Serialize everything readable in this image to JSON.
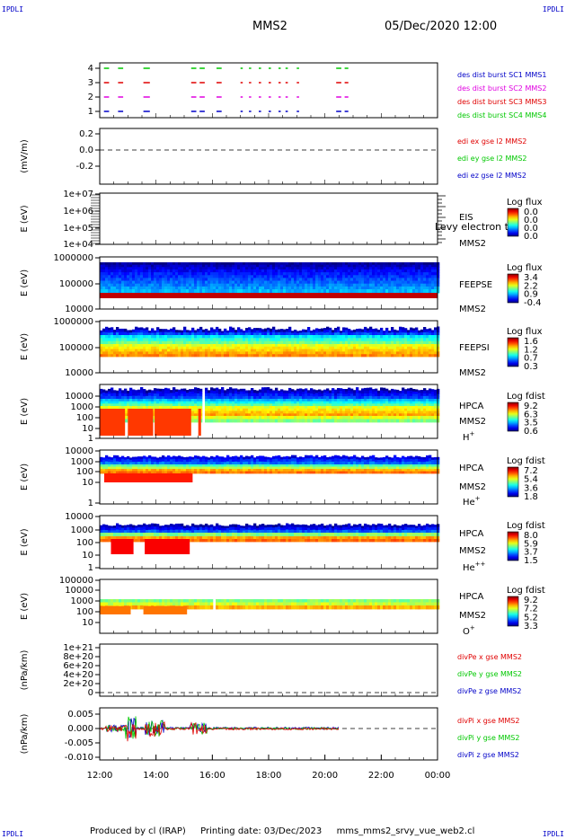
{
  "corners": [
    "IPDLI",
    "IPDLI",
    "IPDLI",
    "IPDLI"
  ],
  "header": {
    "spacecraft": "MMS2",
    "datetime": "05/Dec/2020 12:00"
  },
  "footer": {
    "produced": "Produced by cl (IRAP)",
    "printing": "Printing date: 03/Dec/2023",
    "file": "mms_mms2_srvy_vue_web2.cl"
  },
  "colors": {
    "red": "#e00000",
    "green": "#00c800",
    "blue": "#0000c8",
    "magenta": "#e000e0"
  },
  "chart_data": {
    "type": "multi-panel time series",
    "x": {
      "ticks": [
        "12:00",
        "14:00",
        "16:00",
        "18:00",
        "20:00",
        "22:00",
        "00:00"
      ],
      "range": [
        "12:00",
        "00:00"
      ]
    },
    "panels": [
      {
        "id": "burst",
        "ylabel": "",
        "yticks": [
          "4",
          "3",
          "2",
          "1"
        ],
        "ylim": [
          0.5,
          4.5
        ],
        "legend": [
          {
            "text": "des dist burst SC1 MMS1",
            "color": "#0000c8"
          },
          {
            "text": "des dist burst SC2 MMS2",
            "color": "#e000e0"
          },
          {
            "text": "des dist burst SC3 MMS3",
            "color": "#e00000"
          },
          {
            "text": "des dist burst SC4 MMS4",
            "color": "#00c800"
          }
        ],
        "series": [
          {
            "level": 4,
            "color": "#00c800"
          },
          {
            "level": 3,
            "color": "#e00000"
          },
          {
            "level": 2,
            "color": "#e000e0"
          },
          {
            "level": 1,
            "color": "#0000c8"
          }
        ],
        "burst_hours": [
          [
            12.15,
            12.3
          ],
          [
            12.65,
            12.8
          ],
          [
            13.55,
            13.75
          ],
          [
            15.25,
            15.4
          ],
          [
            15.55,
            15.7
          ],
          [
            16.15,
            16.3
          ],
          [
            17.0,
            17.05
          ],
          [
            17.3,
            17.35
          ],
          [
            17.65,
            17.7
          ],
          [
            18.0,
            18.05
          ],
          [
            18.35,
            18.4
          ],
          [
            18.6,
            18.65
          ],
          [
            19.0,
            19.05
          ],
          [
            20.4,
            20.55
          ],
          [
            20.7,
            20.8
          ]
        ]
      },
      {
        "id": "edi",
        "ylabel": "(mV/m)",
        "yticks": [
          "0.2",
          "0.0",
          "-0.2"
        ],
        "ylim": [
          -0.3,
          0.3
        ],
        "legend": [
          {
            "text": "edi ex gse l2 MMS2",
            "color": "#e00000"
          },
          {
            "text": "edi ey gse l2 MMS2",
            "color": "#00c800"
          },
          {
            "text": "edi ez gse l2 MMS2",
            "color": "#0000c8"
          }
        ]
      },
      {
        "id": "eis",
        "ylabel": "E (eV)",
        "yticks": [
          "1e+07",
          "1e+06",
          "1e+05",
          "1e+04"
        ],
        "labels": [
          "EIS",
          "MMS2"
        ],
        "overlay": "Levy electron to",
        "cbar": {
          "title": "Log flux",
          "ticks": [
            "0.0",
            "0.0",
            "0.0",
            "0.0"
          ]
        }
      },
      {
        "id": "feepse",
        "ylabel": "E (eV)",
        "yticks": [
          "1000000",
          "100000",
          "10000"
        ],
        "labels": [
          "FEEPSE",
          "MMS2"
        ],
        "cbar": {
          "title": "Log flux",
          "ticks": [
            "3.4",
            "2.2",
            "0.9",
            "-0.4"
          ]
        }
      },
      {
        "id": "feepsi",
        "ylabel": "E (eV)",
        "yticks": [
          "1000000",
          "100000",
          "10000"
        ],
        "labels": [
          "FEEPSI",
          "MMS2"
        ],
        "cbar": {
          "title": "Log flux",
          "ticks": [
            "1.6",
            "1.2",
            "0.7",
            "0.3"
          ]
        }
      },
      {
        "id": "hpca_h",
        "ylabel": "E (eV)",
        "yticks": [
          "10000",
          "1000",
          "100",
          "10",
          "1"
        ],
        "labels": [
          "HPCA",
          "MMS2",
          "H+"
        ],
        "cbar": {
          "title": "Log fdist",
          "ticks": [
            "9.2",
            "6.3",
            "3.5",
            "0.6"
          ]
        }
      },
      {
        "id": "hpca_he",
        "ylabel": "E (eV)",
        "yticks": [
          "10000",
          "1000",
          "100",
          "10",
          "1"
        ],
        "labels": [
          "HPCA",
          "MMS2",
          "He+"
        ],
        "cbar": {
          "title": "Log fdist",
          "ticks": [
            "7.2",
            "5.4",
            "3.6",
            "1.8"
          ]
        }
      },
      {
        "id": "hpca_hepp",
        "ylabel": "E (eV)",
        "yticks": [
          "10000",
          "1000",
          "100",
          "10",
          "1"
        ],
        "labels": [
          "HPCA",
          "MMS2",
          "He++"
        ],
        "cbar": {
          "title": "Log fdist",
          "ticks": [
            "8.0",
            "5.9",
            "3.7",
            "1.5"
          ]
        }
      },
      {
        "id": "hpca_o",
        "ylabel": "E (eV)",
        "yticks": [
          "100000",
          "10000",
          "1000",
          "100",
          "10"
        ],
        "labels": [
          "HPCA",
          "MMS2",
          "O+"
        ],
        "cbar": {
          "title": "Log fdist",
          "ticks": [
            "9.2",
            "7.2",
            "5.2",
            "3.3"
          ]
        }
      },
      {
        "id": "divpe",
        "ylabel": "(nPa/km)",
        "yticks": [
          "1e+21",
          "8e+20",
          "6e+20",
          "4e+20",
          "2e+20",
          "0"
        ],
        "legend": [
          {
            "text": "divPe x gse MMS2",
            "color": "#e00000"
          },
          {
            "text": "divPe y gse MMS2",
            "color": "#00c800"
          },
          {
            "text": "divPe z gse MMS2",
            "color": "#0000c8"
          }
        ]
      },
      {
        "id": "divpi",
        "ylabel": "(nPa/km)",
        "yticks": [
          "0.005",
          "0.000",
          "-0.005",
          "-0.010"
        ],
        "ylim": [
          -0.012,
          0.007
        ],
        "legend": [
          {
            "text": "divPi x gse MMS2",
            "color": "#e00000"
          },
          {
            "text": "divPi y gse MMS2",
            "color": "#00c800"
          },
          {
            "text": "divPi z gse MMS2",
            "color": "#0000c8"
          }
        ]
      }
    ]
  }
}
